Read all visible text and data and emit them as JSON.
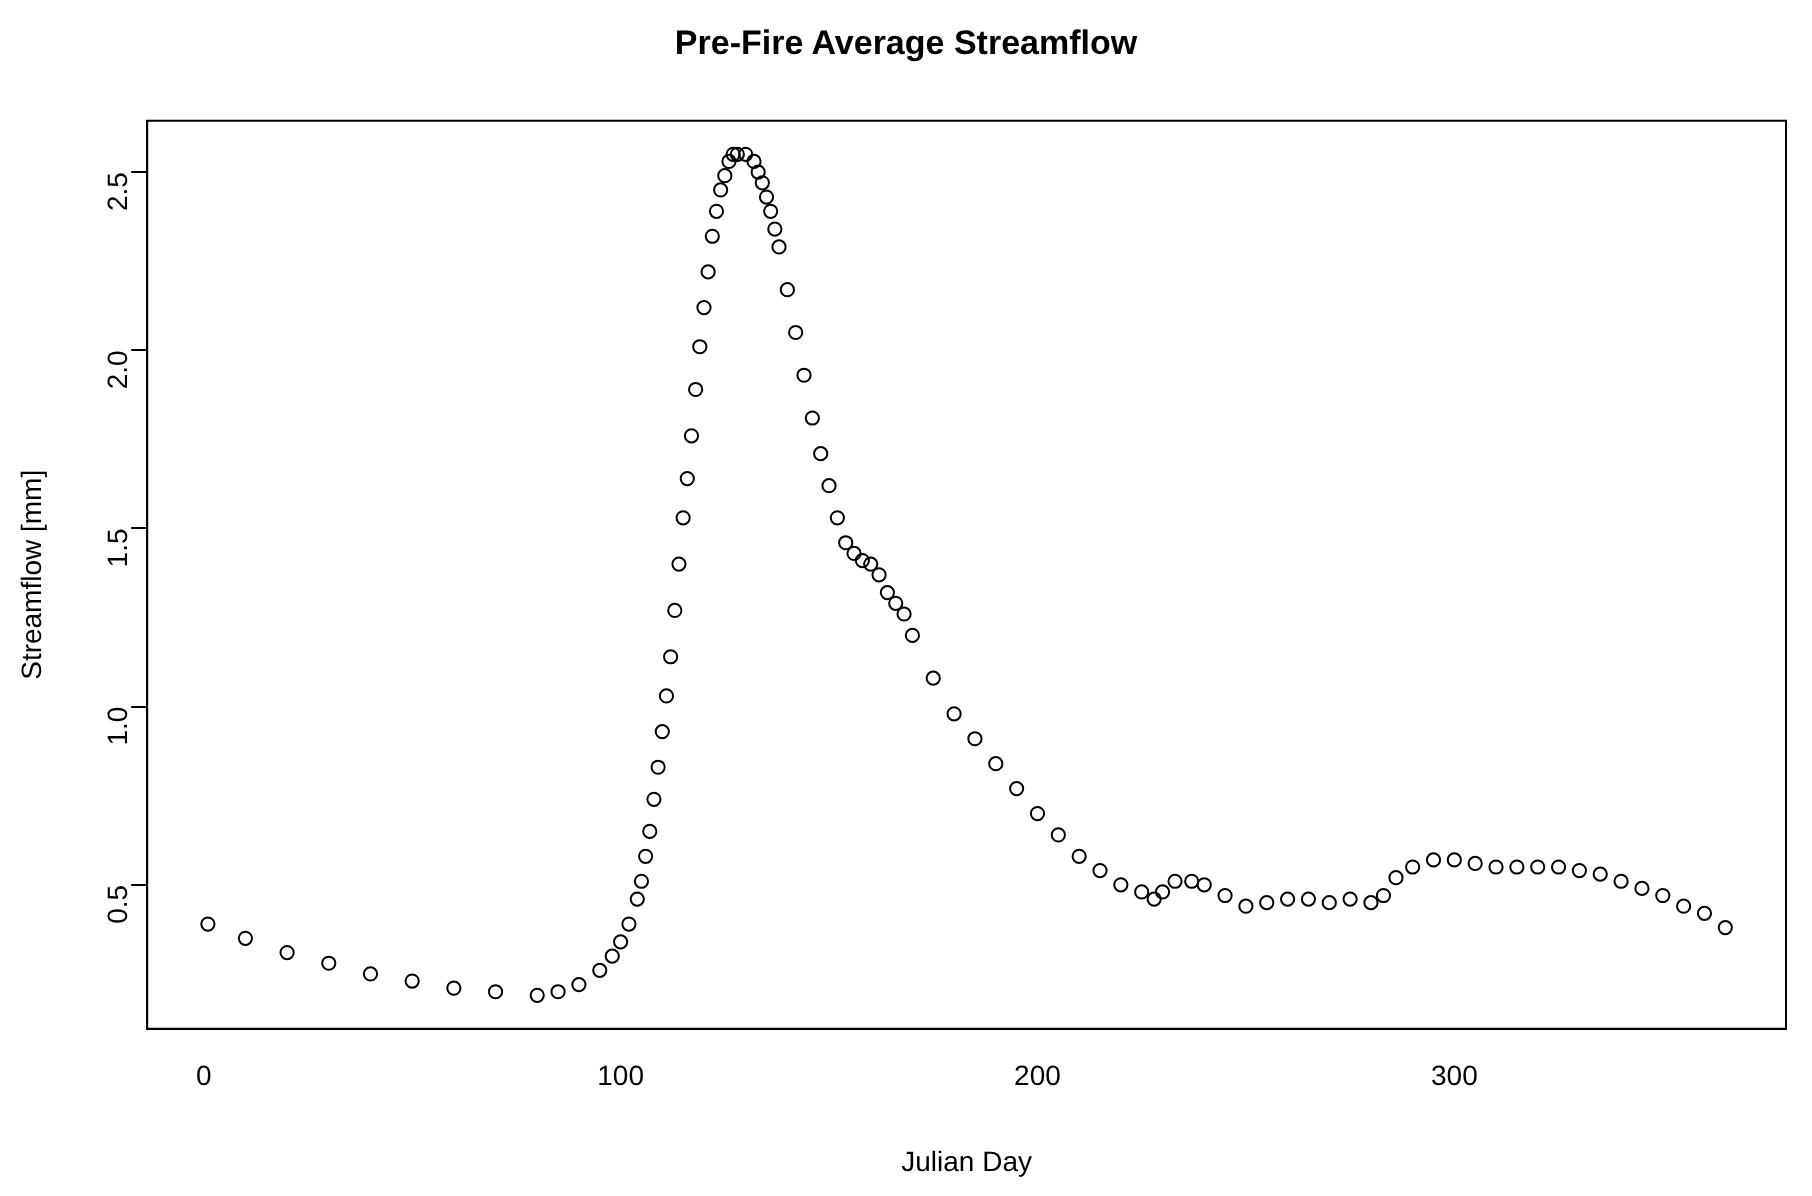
{
  "chart_data": {
    "type": "scatter",
    "title": "Pre-Fire Average Streamflow",
    "xlabel": "Julian Day",
    "ylabel": "Streamflow [mm]",
    "marker": "circle",
    "grid": false,
    "xlim": [
      -13.56,
      379.56
    ],
    "ylim": [
      0.096,
      2.644
    ],
    "xticks": [
      0,
      100,
      200,
      300
    ],
    "yticks": [
      0.5,
      {
        "value": 1,
        "label": "1.0"
      },
      1.5,
      {
        "value": 2,
        "label": "2.0"
      },
      2.5
    ],
    "series": [
      {
        "color": "#000000",
        "x": [
          1,
          10,
          20,
          30,
          40,
          50,
          60,
          70,
          80,
          85,
          90,
          95,
          98,
          100,
          102,
          104,
          105,
          106,
          107,
          108,
          109,
          110,
          111,
          112,
          113,
          114,
          115,
          116,
          117,
          118,
          119,
          120,
          121,
          122,
          123,
          124,
          125,
          126,
          127,
          128,
          130,
          132,
          133,
          134,
          135,
          136,
          137,
          138,
          140,
          142,
          144,
          146,
          148,
          150,
          152,
          154,
          156,
          158,
          160,
          162,
          164,
          166,
          168,
          170,
          175,
          180,
          185,
          190,
          195,
          200,
          205,
          210,
          215,
          220,
          225,
          228,
          230,
          233,
          237,
          240,
          245,
          250,
          255,
          260,
          265,
          270,
          275,
          280,
          283,
          286,
          290,
          295,
          300,
          305,
          310,
          315,
          320,
          325,
          330,
          335,
          340,
          345,
          350,
          355,
          360,
          365
        ],
        "values": [
          0.39,
          0.35,
          0.31,
          0.28,
          0.25,
          0.23,
          0.21,
          0.2,
          0.19,
          0.2,
          0.22,
          0.26,
          0.3,
          0.34,
          0.39,
          0.46,
          0.51,
          0.58,
          0.65,
          0.74,
          0.83,
          0.93,
          1.03,
          1.14,
          1.27,
          1.4,
          1.53,
          1.64,
          1.76,
          1.89,
          2.01,
          2.12,
          2.22,
          2.32,
          2.39,
          2.45,
          2.49,
          2.53,
          2.55,
          2.55,
          2.55,
          2.53,
          2.5,
          2.47,
          2.43,
          2.39,
          2.34,
          2.29,
          2.17,
          2.05,
          1.93,
          1.81,
          1.71,
          1.62,
          1.53,
          1.46,
          1.43,
          1.41,
          1.4,
          1.37,
          1.32,
          1.29,
          1.26,
          1.2,
          1.08,
          0.98,
          0.91,
          0.84,
          0.77,
          0.7,
          0.64,
          0.58,
          0.54,
          0.5,
          0.48,
          0.46,
          0.48,
          0.51,
          0.51,
          0.5,
          0.47,
          0.44,
          0.45,
          0.46,
          0.46,
          0.45,
          0.46,
          0.45,
          0.47,
          0.52,
          0.55,
          0.57,
          0.57,
          0.56,
          0.55,
          0.55,
          0.55,
          0.55,
          0.54,
          0.53,
          0.51,
          0.49,
          0.47,
          0.44,
          0.42,
          0.38
        ]
      }
    ]
  }
}
